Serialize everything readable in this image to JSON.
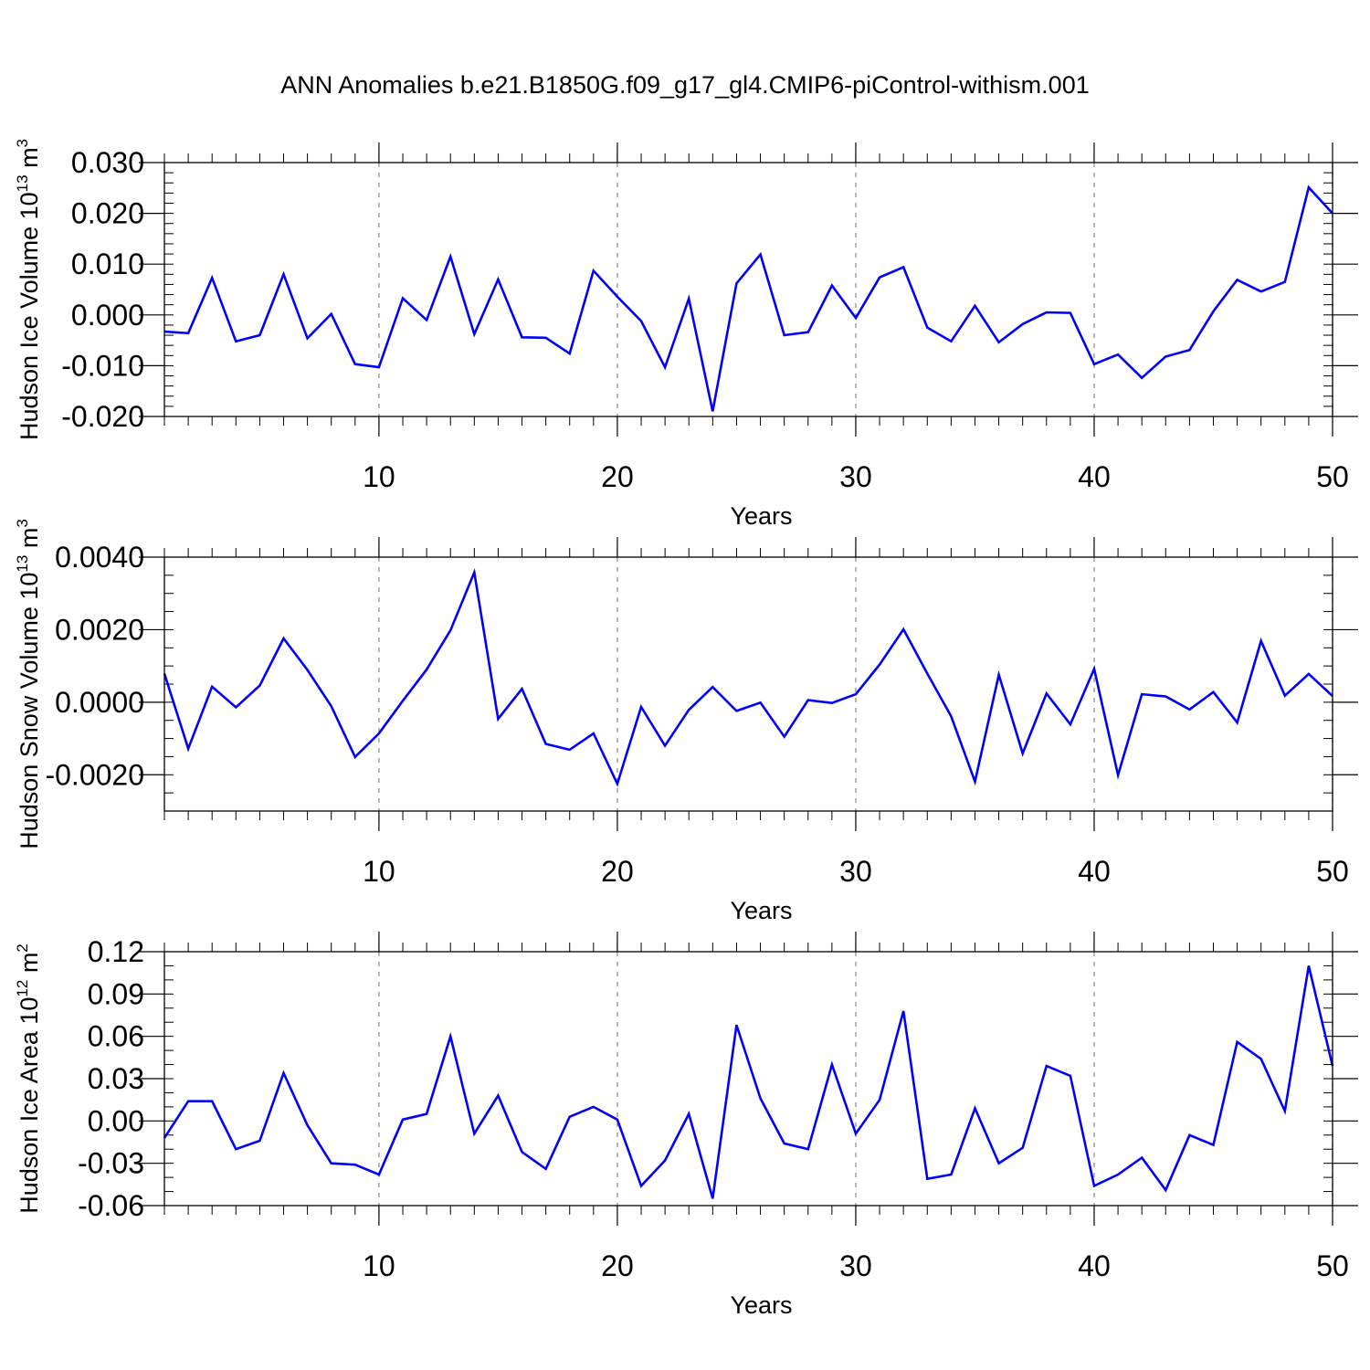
{
  "title": "ANN Anomalies b.e21.B1850G.f09_g17_gl4.CMIP6-piControl-withism.001",
  "chart_data": [
    {
      "type": "line",
      "xlabel": "Years",
      "ylabel": {
        "text": "Hudson Ice Volume 10",
        "sup": "13",
        "unit": " m",
        "unit_sup": "3"
      },
      "xlim": [
        1,
        50
      ],
      "ylim": [
        -0.02,
        0.03
      ],
      "yticks": [
        "-0.020",
        "-0.010",
        "0.000",
        "0.010",
        "0.020",
        "0.030"
      ],
      "yticks_values": [
        -0.02,
        -0.01,
        0.0,
        0.01,
        0.02,
        0.03
      ],
      "yminor_step": 0.002,
      "xticks": [
        "10",
        "20",
        "30",
        "40",
        "50"
      ],
      "xticks_values": [
        10,
        20,
        30,
        40,
        50
      ],
      "line_color": "#0000ff",
      "grid": "vertical dashed at major x ticks",
      "values": [
        -0.0033,
        -0.0036,
        0.0073,
        -0.0052,
        -0.004,
        0.008,
        -0.0046,
        0.0002,
        -0.0097,
        -0.0103,
        0.0033,
        -0.001,
        0.0115,
        -0.0038,
        0.007,
        -0.0044,
        -0.0045,
        -0.0076,
        0.0087,
        0.0036,
        -0.0012,
        -0.0103,
        0.0032,
        -0.019,
        0.0062,
        0.0119,
        -0.004,
        -0.0034,
        0.0058,
        -0.0006,
        0.0074,
        0.0094,
        -0.0025,
        -0.0052,
        0.0018,
        -0.0054,
        -0.0018,
        0.0005,
        0.0004,
        -0.0097,
        -0.0078,
        -0.0124,
        -0.0082,
        -0.0069,
        0.0007,
        0.0069,
        0.0046,
        0.0065,
        0.0251,
        0.02
      ]
    },
    {
      "type": "line",
      "xlabel": "Years",
      "ylabel": {
        "text": "Hudson Snow Volume 10",
        "sup": "13",
        "unit": " m",
        "unit_sup": "3"
      },
      "xlim": [
        1,
        50
      ],
      "ylim": [
        -0.003,
        0.004
      ],
      "yticks": [
        "-0.0020",
        "0.0000",
        "0.0020",
        "0.0040"
      ],
      "yticks_values": [
        -0.002,
        0.0,
        0.002,
        0.004
      ],
      "yminor_step": 0.0005,
      "xticks": [
        "10",
        "20",
        "30",
        "40",
        "50"
      ],
      "xticks_values": [
        10,
        20,
        30,
        40,
        50
      ],
      "line_color": "#0000ff",
      "grid": "vertical dashed at major x ticks",
      "values": [
        0.00079,
        -0.00128,
        0.00043,
        -0.00014,
        0.00046,
        0.00176,
        0.00089,
        -0.00011,
        -0.00151,
        -0.00086,
        4e-05,
        0.0009,
        0.00198,
        0.00358,
        -0.00046,
        0.00037,
        -0.00115,
        -0.00131,
        -0.00086,
        -0.00225,
        -0.00013,
        -0.0012,
        -0.00021,
        0.00042,
        -0.00024,
        -1e-05,
        -0.00095,
        6e-05,
        -2e-05,
        0.00022,
        0.00104,
        0.00201,
        0.00079,
        -0.00039,
        -0.00219,
        0.00076,
        -0.00141,
        0.00024,
        -0.00061,
        0.00092,
        -0.00201,
        0.00022,
        0.00016,
        -0.0002,
        0.00028,
        -0.00056,
        0.00169,
        0.00018,
        0.00078,
        0.00017
      ]
    },
    {
      "type": "line",
      "xlabel": "Years",
      "ylabel": {
        "text": "Hudson Ice Area 10",
        "sup": "12",
        "unit": " m",
        "unit_sup": "2"
      },
      "xlim": [
        1,
        50
      ],
      "ylim": [
        -0.06,
        0.12
      ],
      "yticks": [
        "-0.06",
        "-0.03",
        "0.00",
        "0.03",
        "0.06",
        "0.09",
        "0.12"
      ],
      "yticks_values": [
        -0.06,
        -0.03,
        0.0,
        0.03,
        0.06,
        0.09,
        0.12
      ],
      "yminor_step": 0.01,
      "xticks": [
        "10",
        "20",
        "30",
        "40",
        "50"
      ],
      "xticks_values": [
        10,
        20,
        30,
        40,
        50
      ],
      "line_color": "#0000ff",
      "grid": "vertical dashed at major x ticks",
      "values": [
        -0.012,
        0.014,
        0.014,
        -0.02,
        -0.014,
        0.034,
        -0.003,
        -0.03,
        -0.031,
        -0.038,
        0.001,
        0.005,
        0.06,
        -0.009,
        0.018,
        -0.022,
        -0.034,
        0.003,
        0.01,
        0.001,
        -0.046,
        -0.028,
        0.005,
        -0.055,
        0.068,
        0.016,
        -0.016,
        -0.02,
        0.04,
        -0.009,
        0.015,
        0.078,
        -0.041,
        -0.038,
        0.009,
        -0.03,
        -0.019,
        0.039,
        0.032,
        -0.046,
        -0.038,
        -0.026,
        -0.049,
        -0.01,
        -0.017,
        0.056,
        0.044,
        0.007,
        0.11,
        0.039
      ]
    }
  ]
}
